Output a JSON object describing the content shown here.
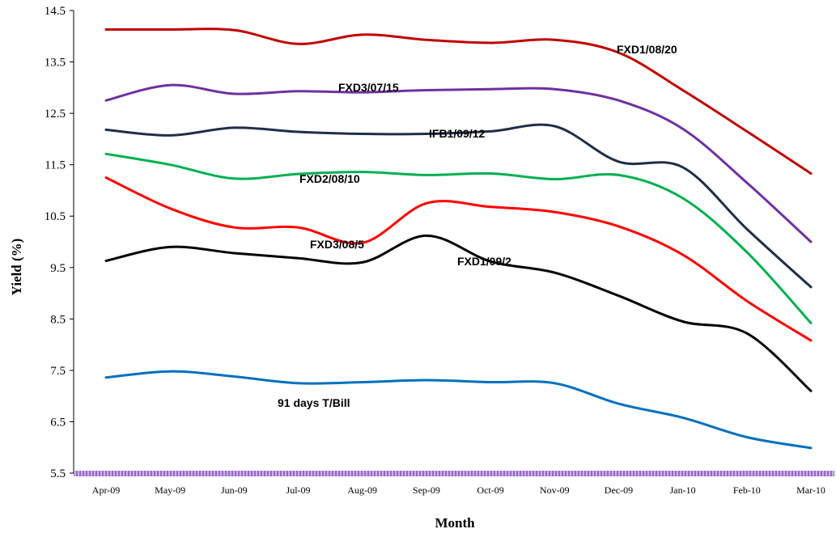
{
  "chart_data": {
    "type": "line",
    "title": "",
    "xlabel": "Month",
    "ylabel": "Yield (%)",
    "ylim": [
      5.5,
      14.5
    ],
    "yticks": [
      "14.5",
      "13.5",
      "12.5",
      "11.5",
      "10.5",
      "9.5",
      "8.5",
      "7.5",
      "6.5",
      "5.5"
    ],
    "yticks_values": [
      14.5,
      13.5,
      12.5,
      11.5,
      10.5,
      9.5,
      8.5,
      7.5,
      6.5,
      5.5
    ],
    "categories": [
      "Apr-09",
      "May-09",
      "Jun-09",
      "Jul-09",
      "Aug-09",
      "Sep-09",
      "Oct-09",
      "Nov-09",
      "Dec-09",
      "Jan-10",
      "Feb-10",
      "Mar-10"
    ],
    "grid": false,
    "legend": "inline labels",
    "series": [
      {
        "name": "FXD1/08/20",
        "color": "#c00000",
        "values": [
          14.13,
          14.13,
          14.12,
          13.85,
          14.03,
          13.93,
          13.87,
          13.93,
          13.68,
          12.95,
          12.15,
          11.33
        ]
      },
      {
        "name": "FXD3/07/15",
        "color": "#7030a0",
        "values": [
          12.75,
          13.05,
          12.88,
          12.93,
          12.91,
          12.95,
          12.97,
          12.97,
          12.75,
          12.2,
          11.15,
          10.0
        ]
      },
      {
        "name": "IFB1/09/12",
        "color": "#1f2e4a",
        "values": [
          12.18,
          12.07,
          12.22,
          12.14,
          12.1,
          12.1,
          12.15,
          12.25,
          11.56,
          11.45,
          10.25,
          9.12
        ]
      },
      {
        "name": "FXD2/08/10",
        "color": "#00b050",
        "values": [
          11.71,
          11.5,
          11.23,
          11.32,
          11.36,
          11.3,
          11.33,
          11.22,
          11.3,
          10.85,
          9.8,
          8.42
        ]
      },
      {
        "name": "FXD3/08/5",
        "color": "#ff0000",
        "values": [
          11.25,
          10.65,
          10.28,
          10.28,
          9.98,
          10.75,
          10.68,
          10.58,
          10.3,
          9.75,
          8.85,
          8.08
        ]
      },
      {
        "name": "FXD1/09/2",
        "color": "#000000",
        "values": [
          9.63,
          9.9,
          9.78,
          9.68,
          9.6,
          10.12,
          9.62,
          9.4,
          8.95,
          8.45,
          8.22,
          7.1
        ]
      },
      {
        "name": "91 days T/Bill",
        "color": "#0070c0",
        "values": [
          7.36,
          7.48,
          7.38,
          7.25,
          7.27,
          7.31,
          7.27,
          7.25,
          6.85,
          6.58,
          6.2,
          5.99
        ]
      }
    ]
  }
}
